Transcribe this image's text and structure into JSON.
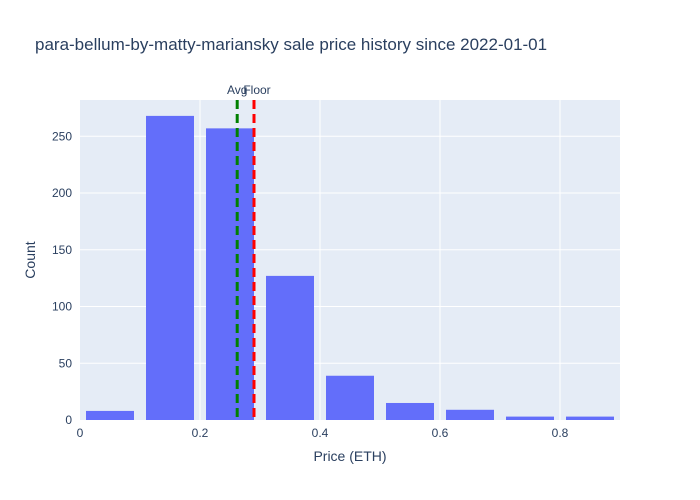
{
  "chart_data": {
    "type": "bar",
    "title": "para-bellum-by-matty-mariansky sale price history since 2022-01-01",
    "xlabel": "Price (ETH)",
    "ylabel": "Count",
    "xlim": [
      0,
      0.9
    ],
    "ylim": [
      0,
      282
    ],
    "x_ticks": [
      0,
      0.2,
      0.4,
      0.6,
      0.8
    ],
    "x_tick_labels": [
      "0",
      "0.2",
      "0.4",
      "0.6",
      "0.8"
    ],
    "y_ticks": [
      0,
      50,
      100,
      150,
      200,
      250
    ],
    "y_tick_labels": [
      "0",
      "50",
      "100",
      "150",
      "200",
      "250"
    ],
    "grid": true,
    "bins": [
      {
        "start": 0.0,
        "end": 0.1,
        "count": 8
      },
      {
        "start": 0.1,
        "end": 0.2,
        "count": 268
      },
      {
        "start": 0.2,
        "end": 0.3,
        "count": 257
      },
      {
        "start": 0.3,
        "end": 0.4,
        "count": 127
      },
      {
        "start": 0.4,
        "end": 0.5,
        "count": 39
      },
      {
        "start": 0.5,
        "end": 0.6,
        "count": 15
      },
      {
        "start": 0.6,
        "end": 0.7,
        "count": 9
      },
      {
        "start": 0.7,
        "end": 0.8,
        "count": 3
      },
      {
        "start": 0.8,
        "end": 0.9,
        "count": 3
      }
    ],
    "vlines": [
      {
        "label": "Avg",
        "x": 0.262,
        "color": "#008000"
      },
      {
        "label": "Floor",
        "x": 0.29,
        "color": "#ff0000"
      }
    ],
    "colors": {
      "bar": "#636efa",
      "plot_bg": "#e5ecf6",
      "grid": "#ffffff",
      "text": "#2a3f5f"
    }
  }
}
